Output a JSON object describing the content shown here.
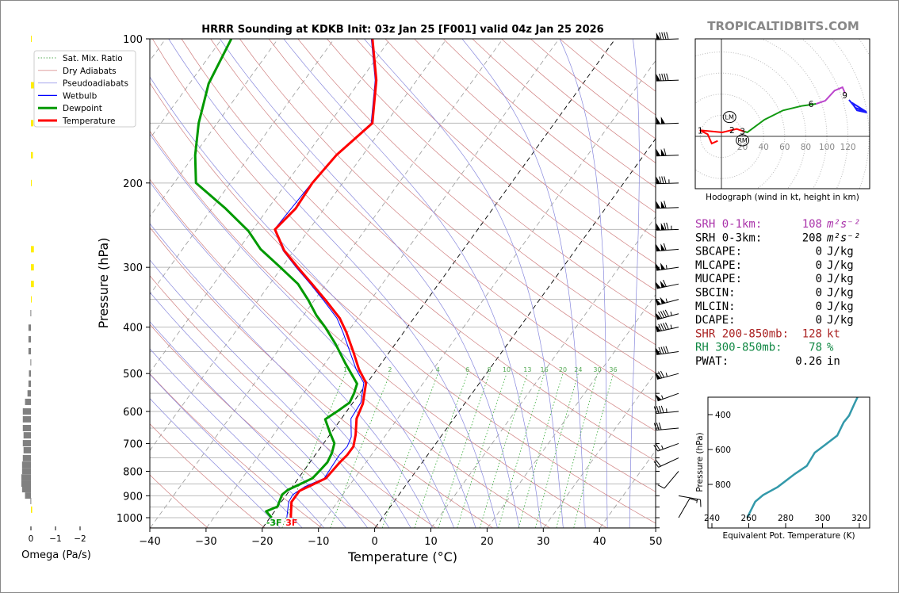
{
  "watermark": "TROPICALTIDBITS.COM",
  "chart_data": [
    {
      "type": "line",
      "title": "HRRR Sounding at KDKB Init: 03z Jan 25 [F001] valid 04z Jan 25 2026",
      "xlabel": "Temperature (°C)",
      "ylabel": "Pressure (hPa)",
      "xlim": [
        -40,
        50
      ],
      "ylim": [
        1050,
        100
      ],
      "yscale": "log",
      "skewed": true,
      "grid": true,
      "legend_position": "top-left",
      "xticks": [
        "−40",
        "−30",
        "−20",
        "−10",
        "0",
        "10",
        "20",
        "30",
        "40",
        "50"
      ],
      "yticks": [
        "100",
        "200",
        "300",
        "400",
        "500",
        "600",
        "700",
        "800",
        "900",
        "1000"
      ],
      "legend": [
        "Sat. Mix. Ratio",
        "Dry Adiabats",
        "Pseudoadiabats",
        "Wetbulb",
        "Dewpoint",
        "Temperature"
      ],
      "colors": {
        "temperature": "#ff0000",
        "dewpoint": "#009900",
        "wetbulb": "#0000ff",
        "dry": "#d08080",
        "moist": "#8888dd",
        "mixing": "#33aa33"
      },
      "mixing_ratio_labels": [
        "1",
        "2",
        "4",
        "6",
        "8",
        "10",
        "13",
        "16",
        "20",
        "24",
        "30",
        "36"
      ],
      "surface_labels": {
        "dewpoint": "-3F",
        "temperature": "3F"
      },
      "series": [
        {
          "name": "Temperature",
          "pressure": [
            100,
            122,
            150,
            175,
            200,
            226,
            250,
            277,
            302,
            325,
            352,
            383,
            410,
            451,
            490,
            523,
            578,
            621,
            671,
            710,
            740,
            769,
            827,
            859,
            879,
            927,
            1000
          ],
          "values": [
            -63.2,
            -57.2,
            -52.4,
            -54.7,
            -55.4,
            -55.1,
            -56.1,
            -51.7,
            -46.8,
            -42.5,
            -37.9,
            -33.2,
            -30.2,
            -26.4,
            -23.2,
            -20.2,
            -18.1,
            -17.3,
            -15.4,
            -14.3,
            -14.3,
            -14.7,
            -15.1,
            -17.0,
            -18.2,
            -18.2,
            -16.3
          ]
        },
        {
          "name": "Dewpoint",
          "pressure": [
            100,
            124,
            150,
            175,
            200,
            226,
            252,
            275,
            299,
            325,
            352,
            378,
            401,
            434,
            477,
            525,
            550,
            575,
            596,
            623,
            665,
            699,
            732,
            766,
            799,
            827,
            852,
            875,
            895,
            948,
            970,
            1000
          ],
          "values": [
            -88.3,
            -86.6,
            -83.3,
            -79.8,
            -76.1,
            -67.6,
            -60.6,
            -56.1,
            -50.5,
            -45.0,
            -41.0,
            -37.7,
            -34.5,
            -30.6,
            -26.3,
            -21.7,
            -21.0,
            -20.6,
            -21.5,
            -22.8,
            -20.2,
            -18.1,
            -17.3,
            -16.9,
            -17.2,
            -17.5,
            -19.0,
            -20.4,
            -20.8,
            -20.1,
            -21.5,
            -19.7
          ]
        },
        {
          "name": "Wetbulb",
          "pressure": [
            100,
            122,
            150,
            175,
            200,
            250,
            277,
            302,
            325,
            352,
            383,
            410,
            451,
            490,
            523,
            575,
            621,
            678,
            710,
            740,
            827,
            862,
            895,
            927,
            1000
          ],
          "values": [
            -63.4,
            -57.4,
            -52.6,
            -54.8,
            -55.5,
            -56.2,
            -51.9,
            -47.1,
            -42.8,
            -38.3,
            -33.7,
            -30.8,
            -27.0,
            -23.7,
            -20.6,
            -18.6,
            -18.3,
            -15.9,
            -15.4,
            -15.7,
            -15.4,
            -17.8,
            -18.9,
            -18.7,
            -17.0
          ]
        }
      ],
      "wind_barbs": [
        {
          "p": 100,
          "kt": 90,
          "dir": 268
        },
        {
          "p": 122,
          "kt": 90,
          "dir": 268
        },
        {
          "p": 150,
          "kt": 100,
          "dir": 268
        },
        {
          "p": 175,
          "kt": 110,
          "dir": 268
        },
        {
          "p": 200,
          "kt": 85,
          "dir": 268
        },
        {
          "p": 225,
          "kt": 110,
          "dir": 268
        },
        {
          "p": 250,
          "kt": 125,
          "dir": 268
        },
        {
          "p": 275,
          "kt": 110,
          "dir": 265
        },
        {
          "p": 300,
          "kt": 105,
          "dir": 262
        },
        {
          "p": 325,
          "kt": 110,
          "dir": 258
        },
        {
          "p": 350,
          "kt": 105,
          "dir": 255
        },
        {
          "p": 375,
          "kt": 95,
          "dir": 255
        },
        {
          "p": 400,
          "kt": 95,
          "dir": 258
        },
        {
          "p": 450,
          "kt": 90,
          "dir": 262
        },
        {
          "p": 500,
          "kt": 75,
          "dir": 255
        },
        {
          "p": 550,
          "kt": 55,
          "dir": 250
        },
        {
          "p": 600,
          "kt": 45,
          "dir": 265
        },
        {
          "p": 650,
          "kt": 30,
          "dir": 265
        },
        {
          "p": 700,
          "kt": 25,
          "dir": 250
        },
        {
          "p": 750,
          "kt": 20,
          "dir": 245
        },
        {
          "p": 800,
          "kt": 10,
          "dir": 220
        },
        {
          "p": 900,
          "kt": 15,
          "dir": 100
        },
        {
          "p": 1000,
          "kt": 10,
          "dir": 30
        }
      ]
    },
    {
      "type": "bar",
      "xlabel": "Omega (Pa/s)",
      "xticks": [
        "0",
        "−1",
        "−2"
      ],
      "xlim": [
        0.5,
        -2.3
      ],
      "colors": {
        "positive": "#808080",
        "negative": "#ffee00"
      },
      "pressure": [
        100,
        125,
        150,
        175,
        200,
        275,
        300,
        325,
        350,
        374,
        401,
        424,
        449,
        474,
        500,
        525,
        550,
        573,
        600,
        623,
        650,
        673,
        699,
        723,
        751,
        775,
        799,
        824,
        849,
        872,
        899,
        923,
        962
      ],
      "values": [
        -0.02,
        -0.12,
        -0.1,
        -0.08,
        -0.03,
        -0.12,
        -0.12,
        -0.12,
        -0.03,
        0.02,
        0.1,
        0.1,
        0.1,
        0.02,
        0.08,
        0.1,
        0.14,
        0.24,
        0.33,
        0.33,
        0.33,
        0.3,
        0.33,
        0.3,
        0.33,
        0.36,
        0.36,
        0.39,
        0.39,
        0.36,
        0.24,
        0.02,
        -0.05
      ]
    },
    {
      "type": "line",
      "title": "Hodograph (wind in kt, height in km)",
      "ring_labels": [
        "20",
        "40",
        "60",
        "80",
        "100",
        "120"
      ],
      "height_labels": [
        "1",
        "2",
        "3",
        "6",
        "9"
      ],
      "storm_motion": {
        "LM": {
          "u": 7.7,
          "v": 18.3
        },
        "RM": {
          "u": 20,
          "v": -3.8
        }
      },
      "segments": [
        {
          "color": "#ff0000",
          "u": [
            -3.5,
            -9.2,
            -13,
            -20.5,
            0.8,
            14.5,
            22
          ],
          "v": [
            -4.3,
            -6.8,
            2,
            5.8,
            3.8,
            7,
            4.5
          ]
        },
        {
          "color": "#119911",
          "u": [
            22,
            24.6,
            40.8,
            58.4,
            75.9,
            89.7
          ],
          "v": [
            4.5,
            3.8,
            15.8,
            24.6,
            28.8,
            30.8
          ]
        },
        {
          "color": "#bb44cc",
          "u": [
            89.7,
            98.5,
            107.3,
            114.8,
            117.3
          ],
          "v": [
            30.8,
            33.8,
            43.4,
            46.6,
            40.8
          ]
        },
        {
          "color": "#1a1aff",
          "u": [
            121,
            127.3,
            137.4,
            123.5,
            128.6,
            138
          ],
          "v": [
            34.6,
            27,
            23.3,
            32.1,
            24.6,
            22.5
          ]
        }
      ]
    },
    {
      "type": "line",
      "xlabel": "Equivalent Pot. Temperature (K)",
      "ylabel": "Pressure (hPa)",
      "xticks": [
        "240",
        "260",
        "280",
        "300",
        "320"
      ],
      "yticks": [
        "400",
        "600",
        "800"
      ],
      "color": "#3399aa",
      "theta_e": [
        259.2,
        263.5,
        267.8,
        275.7,
        285.0,
        291.5,
        295.8,
        301.5,
        308.0,
        311.5,
        314.4,
        317.3,
        319.0
      ],
      "pressure": [
        990,
        899,
        861,
        815,
        740,
        694,
        618,
        573,
        520,
        444,
        406,
        338,
        300
      ]
    }
  ],
  "indices": [
    {
      "label": "SRH 0-1km:",
      "value": "108",
      "unit": "m²s⁻²",
      "color": "#aa33aa"
    },
    {
      "label": "SRH 0-3km:",
      "value": "208",
      "unit": "m²s⁻²",
      "color": "#000000"
    },
    {
      "label": "SBCAPE:",
      "value": "0",
      "unit": "J/kg",
      "color": "#000000"
    },
    {
      "label": "MLCAPE:",
      "value": "0",
      "unit": "J/kg",
      "color": "#000000"
    },
    {
      "label": "MUCAPE:",
      "value": "0",
      "unit": "J/kg",
      "color": "#000000"
    },
    {
      "label": "SBCIN:",
      "value": "0",
      "unit": "J/kg",
      "color": "#000000"
    },
    {
      "label": "MLCIN:",
      "value": "0",
      "unit": "J/kg",
      "color": "#000000"
    },
    {
      "label": "DCAPE:",
      "value": "0",
      "unit": "J/kg",
      "color": "#000000"
    },
    {
      "label": "SHR 200-850mb:",
      "value": "128",
      "unit": "kt",
      "color": "#aa2222"
    },
    {
      "label": "RH 300-850mb:",
      "value": "78",
      "unit": "%",
      "color": "#118844"
    },
    {
      "label": "PWAT:",
      "value": "0.26",
      "unit": "in",
      "color": "#000000"
    }
  ]
}
